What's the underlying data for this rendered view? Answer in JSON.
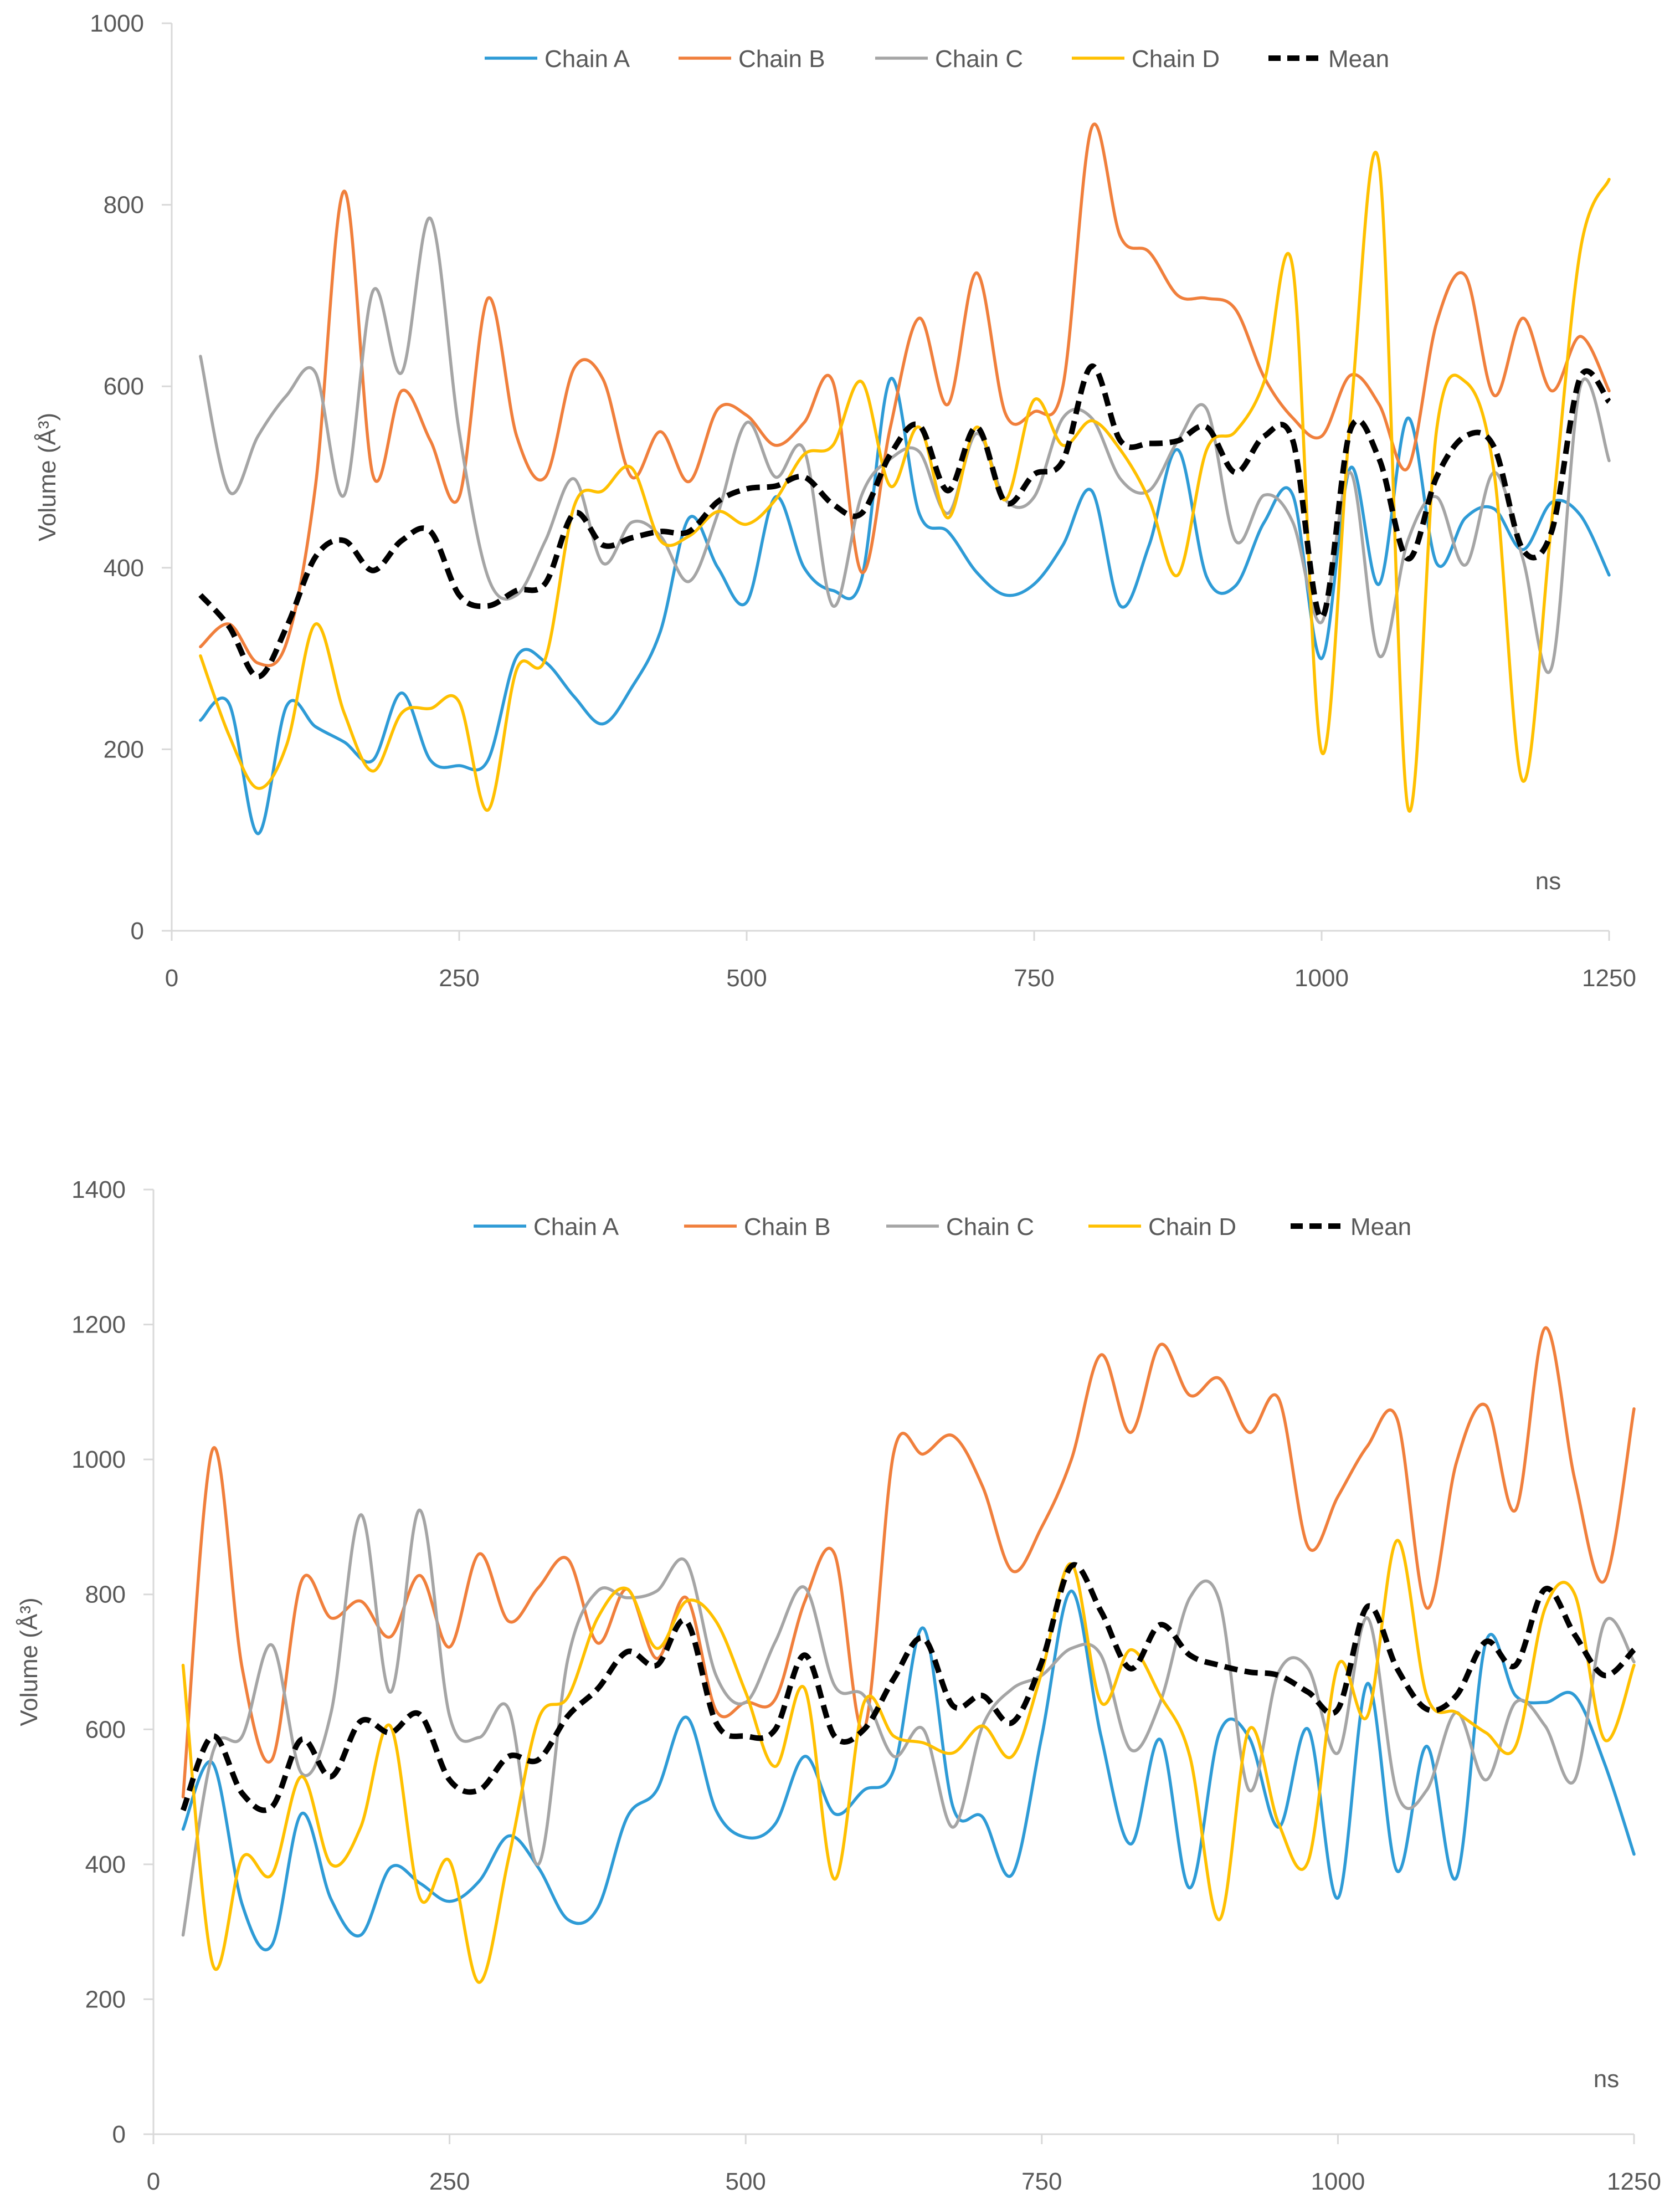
{
  "chart_data": [
    {
      "type": "line",
      "title": "",
      "xlabel": "ns",
      "ylabel": "Volume (Å³)",
      "xlim": [
        0,
        1250
      ],
      "ylim": [
        0,
        1000
      ],
      "xticks": [
        0,
        250,
        500,
        750,
        1000,
        1250
      ],
      "yticks": [
        0,
        200,
        400,
        600,
        800,
        1000
      ],
      "grid": false,
      "legend": "top",
      "x": [
        25,
        50,
        75,
        100,
        125,
        150,
        175,
        200,
        225,
        250,
        275,
        300,
        325,
        350,
        375,
        400,
        425,
        450,
        475,
        500,
        525,
        550,
        575,
        600,
        625,
        650,
        675,
        700,
        725,
        750,
        775,
        800,
        825,
        850,
        875,
        900,
        925,
        950,
        975,
        1000,
        1025,
        1050,
        1075,
        1100,
        1125,
        1150,
        1175,
        1200,
        1225,
        1250
      ],
      "series": [
        {
          "name": "Chain A",
          "color": "#2E9BD6",
          "dash": false,
          "values": [
            232,
            250,
            107,
            248,
            225,
            208,
            188,
            262,
            188,
            182,
            188,
            302,
            296,
            258,
            228,
            268,
            330,
            455,
            400,
            362,
            478,
            400,
            375,
            388,
            608,
            460,
            440,
            395,
            370,
            382,
            425,
            485,
            358,
            425,
            530,
            390,
            380,
            450,
            480,
            300,
            510,
            382,
            565,
            405,
            455,
            465,
            420,
            472,
            458,
            392
          ]
        },
        {
          "name": "Chain B",
          "color": "#F07F3C",
          "dash": false,
          "values": [
            313,
            338,
            295,
            318,
            490,
            815,
            502,
            595,
            540,
            478,
            697,
            545,
            500,
            620,
            608,
            500,
            550,
            495,
            575,
            568,
            535,
            560,
            605,
            395,
            555,
            675,
            580,
            725,
            570,
            572,
            600,
            885,
            765,
            748,
            700,
            697,
            685,
            610,
            565,
            545,
            612,
            580,
            510,
            670,
            722,
            590,
            675,
            595,
            655,
            595
          ]
        },
        {
          "name": "Chain C",
          "color": "#A5A5A5",
          "dash": false,
          "values": [
            633,
            484,
            545,
            590,
            615,
            480,
            705,
            615,
            785,
            550,
            390,
            370,
            430,
            498,
            405,
            450,
            435,
            385,
            460,
            560,
            500,
            530,
            358,
            480,
            520,
            528,
            460,
            548,
            475,
            478,
            565,
            565,
            498,
            485,
            540,
            575,
            430,
            480,
            450,
            340,
            505,
            303,
            430,
            478,
            403,
            505,
            410,
            290,
            600,
            518
          ]
        },
        {
          "name": "Chain D",
          "color": "#FFC000",
          "dash": false,
          "values": [
            303,
            215,
            157,
            205,
            338,
            240,
            176,
            240,
            245,
            252,
            133,
            288,
            300,
            468,
            485,
            510,
            430,
            435,
            462,
            448,
            475,
            525,
            535,
            605,
            490,
            555,
            455,
            555,
            475,
            585,
            535,
            562,
            530,
            475,
            392,
            530,
            550,
            605,
            730,
            197,
            565,
            845,
            136,
            552,
            605,
            505,
            165,
            450,
            750,
            828
          ]
        },
        {
          "name": "Mean",
          "color": "#000000",
          "dash": true,
          "values": [
            370,
            335,
            280,
            335,
            412,
            430,
            397,
            430,
            440,
            370,
            358,
            375,
            383,
            460,
            425,
            433,
            440,
            440,
            473,
            487,
            490,
            500,
            470,
            460,
            525,
            557,
            485,
            555,
            472,
            503,
            518,
            622,
            540,
            537,
            540,
            555,
            505,
            545,
            540,
            345,
            552,
            520,
            410,
            500,
            545,
            533,
            420,
            440,
            610,
            583
          ]
        }
      ]
    },
    {
      "type": "line",
      "title": "",
      "xlabel": "ns",
      "ylabel": "Volume (Å³)",
      "xlim": [
        0,
        1250
      ],
      "ylim": [
        0,
        1400
      ],
      "xticks": [
        0,
        250,
        500,
        750,
        1000,
        1250
      ],
      "yticks": [
        0,
        200,
        400,
        600,
        800,
        1000,
        1200,
        1400
      ],
      "grid": false,
      "legend": "top",
      "x": [
        25,
        50,
        75,
        100,
        125,
        150,
        175,
        200,
        225,
        250,
        275,
        300,
        325,
        350,
        375,
        400,
        425,
        450,
        475,
        500,
        525,
        550,
        575,
        600,
        625,
        650,
        675,
        700,
        725,
        750,
        775,
        800,
        825,
        850,
        875,
        900,
        925,
        950,
        975,
        1000,
        1025,
        1050,
        1075,
        1100,
        1125,
        1150,
        1175,
        1200,
        1225,
        1250
      ],
      "series": [
        {
          "name": "Chain A",
          "color": "#2E9BD6",
          "dash": false,
          "values": [
            452,
            550,
            340,
            280,
            475,
            348,
            295,
            395,
            372,
            345,
            375,
            442,
            395,
            318,
            335,
            470,
            510,
            618,
            480,
            440,
            460,
            560,
            475,
            510,
            540,
            750,
            485,
            470,
            385,
            590,
            805,
            590,
            430,
            585,
            365,
            595,
            588,
            455,
            600,
            350,
            668,
            390,
            575,
            380,
            730,
            650,
            640,
            650,
            550,
            415
          ]
        },
        {
          "name": "Chain B",
          "color": "#F07F3C",
          "dash": false,
          "values": [
            500,
            1015,
            690,
            555,
            820,
            765,
            790,
            737,
            828,
            722,
            860,
            760,
            810,
            852,
            728,
            808,
            705,
            795,
            628,
            640,
            645,
            790,
            860,
            600,
            1010,
            1008,
            1035,
            960,
            835,
            900,
            1000,
            1155,
            1040,
            1170,
            1095,
            1120,
            1040,
            1090,
            870,
            945,
            1020,
            1060,
            780,
            995,
            1080,
            925,
            1195,
            970,
            820,
            1075
          ]
        },
        {
          "name": "Chain C",
          "color": "#A5A5A5",
          "dash": false,
          "values": [
            295,
            565,
            590,
            725,
            535,
            625,
            918,
            655,
            925,
            620,
            588,
            630,
            400,
            705,
            805,
            795,
            805,
            848,
            680,
            640,
            730,
            810,
            665,
            650,
            560,
            600,
            455,
            605,
            660,
            680,
            720,
            710,
            570,
            640,
            795,
            790,
            510,
            685,
            690,
            565,
            765,
            505,
            510,
            625,
            525,
            640,
            605,
            525,
            758,
            700
          ]
        },
        {
          "name": "Chain D",
          "color": "#FFC000",
          "dash": false,
          "values": [
            695,
            252,
            410,
            385,
            530,
            400,
            455,
            605,
            350,
            405,
            225,
            410,
            615,
            648,
            765,
            808,
            720,
            790,
            760,
            655,
            545,
            660,
            378,
            640,
            590,
            580,
            565,
            605,
            560,
            685,
            845,
            640,
            718,
            650,
            560,
            318,
            600,
            460,
            405,
            695,
            620,
            880,
            650,
            625,
            595,
            575,
            780,
            800,
            585,
            695
          ]
        },
        {
          "name": "Mean",
          "color": "#000000",
          "dash": true,
          "values": [
            480,
            590,
            505,
            485,
            585,
            530,
            612,
            595,
            622,
            525,
            510,
            560,
            555,
            620,
            660,
            715,
            695,
            760,
            610,
            590,
            600,
            710,
            590,
            600,
            675,
            735,
            635,
            650,
            610,
            700,
            842,
            775,
            690,
            755,
            710,
            695,
            685,
            680,
            655,
            630,
            782,
            690,
            630,
            650,
            730,
            695,
            808,
            740,
            680,
            718
          ]
        }
      ]
    }
  ]
}
